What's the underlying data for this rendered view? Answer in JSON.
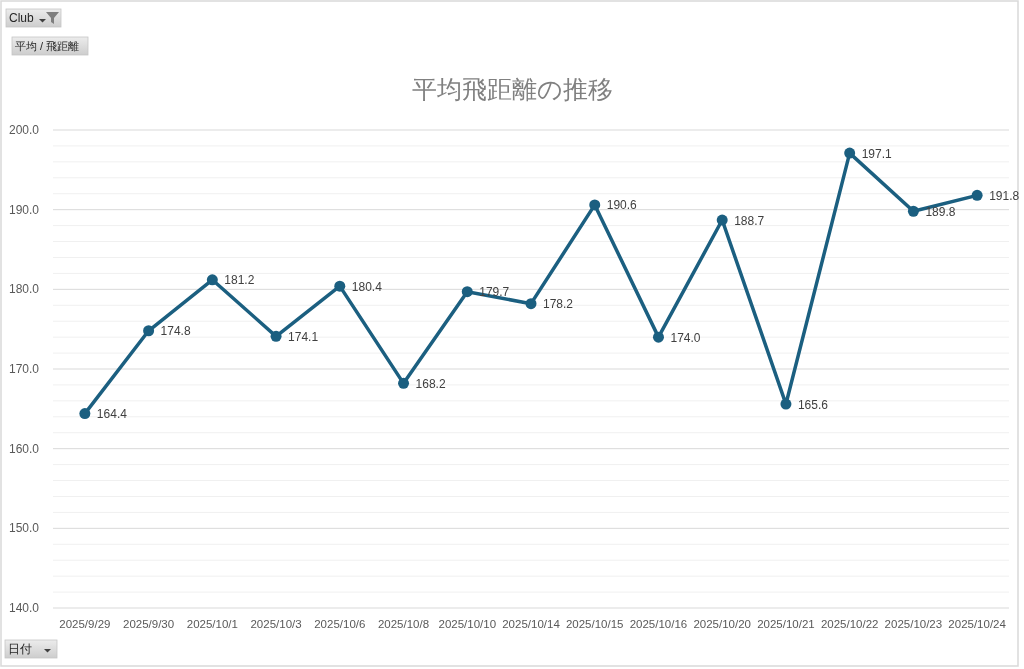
{
  "chart_data": {
    "type": "line",
    "title": "平均飛距離の推移",
    "xlabel": "日付",
    "annotations": [
      "Club",
      "平均 / 飛距離"
    ],
    "categories": [
      "2025/9/29",
      "2025/9/30",
      "2025/10/1",
      "2025/10/3",
      "2025/10/6",
      "2025/10/8",
      "2025/10/10",
      "2025/10/14",
      "2025/10/15",
      "2025/10/16",
      "2025/10/20",
      "2025/10/21",
      "2025/10/22",
      "2025/10/23",
      "2025/10/24"
    ],
    "series": [
      {
        "color": "#1b5f80",
        "values": [
          164.4,
          174.8,
          181.2,
          174.1,
          180.4,
          168.2,
          179.7,
          178.2,
          190.6,
          174.0,
          188.7,
          165.6,
          197.1,
          189.8,
          191.8
        ],
        "value_labels": [
          "164.4",
          "174.8",
          "181.2",
          "174.1",
          "180.4",
          "168.2",
          "179.7",
          "178.2",
          "190.6",
          "174.0",
          "188.7",
          "165.6",
          "197.1",
          "189.8",
          "191.8"
        ]
      }
    ],
    "ylim": [
      140,
      200
    ],
    "yticks": [
      {
        "value": 140,
        "label": "140.0"
      },
      {
        "value": 142,
        "label": null
      },
      {
        "value": 144,
        "label": null
      },
      {
        "value": 146,
        "label": null
      },
      {
        "value": 148,
        "label": null
      },
      {
        "value": 150,
        "label": "150.0"
      },
      {
        "value": 152,
        "label": null
      },
      {
        "value": 154,
        "label": null
      },
      {
        "value": 156,
        "label": null
      },
      {
        "value": 158,
        "label": null
      },
      {
        "value": 160,
        "label": "160.0"
      },
      {
        "value": 162,
        "label": null
      },
      {
        "value": 164,
        "label": null
      },
      {
        "value": 166,
        "label": null
      },
      {
        "value": 168,
        "label": null
      },
      {
        "value": 170,
        "label": "170.0"
      },
      {
        "value": 172,
        "label": null
      },
      {
        "value": 174,
        "label": null
      },
      {
        "value": 176,
        "label": null
      },
      {
        "value": 178,
        "label": null
      },
      {
        "value": 180,
        "label": "180.0"
      },
      {
        "value": 182,
        "label": null
      },
      {
        "value": 184,
        "label": null
      },
      {
        "value": 186,
        "label": null
      },
      {
        "value": 188,
        "label": null
      },
      {
        "value": 190,
        "label": "190.0"
      },
      {
        "value": 192,
        "label": null
      },
      {
        "value": 194,
        "label": null
      },
      {
        "value": 196,
        "label": null
      },
      {
        "value": 198,
        "label": null
      },
      {
        "value": 200,
        "label": "200.0"
      }
    ],
    "grid": "y",
    "marker": "circle",
    "line_style": "solid"
  }
}
